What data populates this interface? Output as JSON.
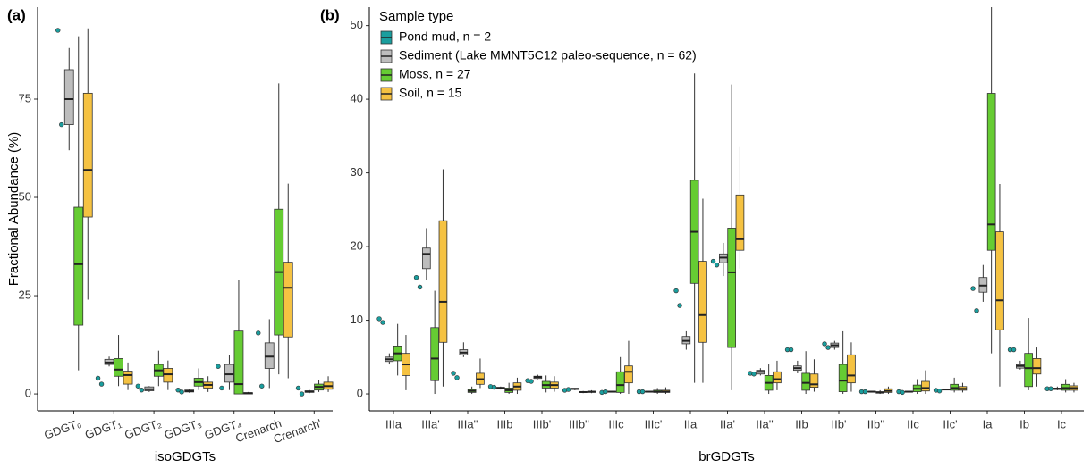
{
  "chart_data": [
    {
      "type": "box",
      "panel_label": "(a)",
      "x_label": "isoGDGTs",
      "y_label": "Fractional Abundance (%)",
      "categories": [
        "GDGT₀",
        "GDGT₁",
        "GDGT₂",
        "GDGT₃",
        "GDGT₄",
        "Crenarch",
        "Crenarch'"
      ],
      "ylim": [
        -4.3,
        98.4
      ],
      "yticks": [
        0,
        25,
        50,
        75
      ],
      "series": [
        {
          "color": "#1a9e9e",
          "values": [
            [
              92.5,
              68.5
            ],
            [
              4,
              2.5
            ],
            [
              2,
              1
            ],
            [
              1,
              0.5
            ],
            [
              7,
              1.5
            ],
            [
              15.5,
              2
            ],
            [
              1.5,
              0
            ]
          ]
        },
        {
          "color": "#bdbdbd",
          "values": [
            {
              "min": 62,
              "q1": 68.5,
              "median": 75,
              "q3": 82.5,
              "max": 88
            },
            {
              "min": 7,
              "q1": 7.5,
              "median": 8,
              "q3": 8.8,
              "max": 9.5
            },
            {
              "min": 0.5,
              "q1": 0.8,
              "median": 1.2,
              "q3": 1.8,
              "max": 2
            },
            {
              "min": 0.3,
              "q1": 0.5,
              "median": 0.7,
              "q3": 1,
              "max": 1.2
            },
            {
              "min": 1,
              "q1": 3,
              "median": 5,
              "q3": 7.5,
              "max": 10
            },
            {
              "min": 1.5,
              "q1": 6.5,
              "median": 9.5,
              "q3": 13,
              "max": 19
            },
            {
              "min": 0.2,
              "q1": 0.4,
              "median": 0.6,
              "q3": 0.8,
              "max": 1
            }
          ]
        },
        {
          "color": "#66cc33",
          "values": [
            {
              "min": 6,
              "q1": 17.5,
              "median": 33,
              "q3": 47.5,
              "max": 91
            },
            {
              "min": 2,
              "q1": 4.5,
              "median": 6.2,
              "q3": 9,
              "max": 15
            },
            {
              "min": 2,
              "q1": 4.5,
              "median": 6,
              "q3": 7.5,
              "max": 11
            },
            {
              "min": 1,
              "q1": 2,
              "median": 3,
              "q3": 4,
              "max": 6.5
            },
            {
              "min": 0,
              "q1": 0,
              "median": 2.5,
              "q3": 16,
              "max": 29
            },
            {
              "min": 5,
              "q1": 15,
              "median": 31,
              "q3": 47,
              "max": 79
            },
            {
              "min": 0.5,
              "q1": 1,
              "median": 1.8,
              "q3": 2.5,
              "max": 3.5
            }
          ]
        },
        {
          "color": "#f5c242",
          "values": [
            {
              "min": 24,
              "q1": 45,
              "median": 57,
              "q3": 76.5,
              "max": 93
            },
            {
              "min": 1,
              "q1": 2.5,
              "median": 4.8,
              "q3": 5.8,
              "max": 8
            },
            {
              "min": 1,
              "q1": 3,
              "median": 5,
              "q3": 6.5,
              "max": 8.5
            },
            {
              "min": 0.5,
              "q1": 1.5,
              "median": 2.3,
              "q3": 3,
              "max": 4.5
            },
            {
              "min": 0,
              "q1": 0,
              "median": 0.2,
              "q3": 0.3,
              "max": 0.5
            },
            {
              "min": 4,
              "q1": 14.5,
              "median": 27,
              "q3": 33.5,
              "max": 53.5
            },
            {
              "min": 0.5,
              "q1": 1.2,
              "median": 2,
              "q3": 3,
              "max": 4.5
            }
          ]
        }
      ]
    },
    {
      "type": "box",
      "panel_label": "(b)",
      "x_label": "brGDGTs",
      "legend_title": "Sample type",
      "categories": [
        "IIIa",
        "IIIa'",
        "IIIa''",
        "IIIb",
        "IIIb'",
        "IIIb''",
        "IIIc",
        "IIIc'",
        "IIa",
        "IIa'",
        "IIa''",
        "IIb",
        "IIb'",
        "IIb''",
        "IIc",
        "IIc'",
        "Ia",
        "Ib",
        "Ic"
      ],
      "ylim": [
        -2.3,
        52.5
      ],
      "yticks": [
        0,
        10,
        20,
        30,
        40,
        50
      ],
      "series": [
        {
          "name": "Pond mud, n = 2",
          "color": "#1a9e9e",
          "values": [
            [
              10.2,
              9.7
            ],
            [
              15.8,
              14.5
            ],
            [
              2.8,
              2.2
            ],
            [
              1,
              0.9
            ],
            [
              1.8,
              1.7
            ],
            [
              0.5,
              0.6
            ],
            [
              0.2,
              0.3
            ],
            [
              0.3,
              0.3
            ],
            [
              14,
              12
            ],
            [
              18,
              17.5
            ],
            [
              2.8,
              2.7
            ],
            [
              6,
              6
            ],
            [
              6.8,
              6.3
            ],
            [
              0.3,
              0.3
            ],
            [
              0.3,
              0.2
            ],
            [
              0.5,
              0.4
            ],
            [
              14.3,
              11.3
            ],
            [
              6,
              6
            ],
            [
              0.7,
              0.7
            ]
          ]
        },
        {
          "name": "Sediment (Lake MMNT5C12 paleo-sequence, n = 62)",
          "color": "#bdbdbd",
          "values": [
            {
              "min": 4,
              "q1": 4.4,
              "median": 4.7,
              "q3": 5,
              "max": 5.5
            },
            {
              "min": 15.5,
              "q1": 17,
              "median": 19,
              "q3": 19.8,
              "max": 22.5
            },
            {
              "min": 5,
              "q1": 5.3,
              "median": 5.6,
              "q3": 6,
              "max": 7
            },
            {
              "min": 0.6,
              "q1": 0.7,
              "median": 0.8,
              "q3": 0.9,
              "max": 1
            },
            {
              "min": 2,
              "q1": 2.1,
              "median": 2.3,
              "q3": 2.4,
              "max": 2.6
            },
            {
              "min": 0.5,
              "q1": 0.6,
              "median": 0.7,
              "q3": 0.75,
              "max": 0.8
            },
            {
              "min": 0.2,
              "q1": 0.25,
              "median": 0.3,
              "q3": 0.35,
              "max": 0.4
            },
            {
              "min": 0.2,
              "q1": 0.25,
              "median": 0.3,
              "q3": 0.35,
              "max": 0.4
            },
            {
              "min": 6,
              "q1": 6.8,
              "median": 7.2,
              "q3": 7.8,
              "max": 8.5
            },
            {
              "min": 16,
              "q1": 17.8,
              "median": 18.5,
              "q3": 19,
              "max": 20.5
            },
            {
              "min": 2.5,
              "q1": 2.7,
              "median": 3,
              "q3": 3.2,
              "max": 3.5
            },
            {
              "min": 2.8,
              "q1": 3.2,
              "median": 3.5,
              "q3": 3.8,
              "max": 4.5
            },
            {
              "min": 6,
              "q1": 6.3,
              "median": 6.6,
              "q3": 6.9,
              "max": 7.2
            },
            {
              "min": 0.2,
              "q1": 0.25,
              "median": 0.3,
              "q3": 0.35,
              "max": 0.4
            },
            {
              "min": 0.2,
              "q1": 0.25,
              "median": 0.3,
              "q3": 0.35,
              "max": 0.4
            },
            {
              "min": 0.5,
              "q1": 0.55,
              "median": 0.6,
              "q3": 0.65,
              "max": 0.7
            },
            {
              "min": 12.5,
              "q1": 13.8,
              "median": 14.7,
              "q3": 15.8,
              "max": 17.5
            },
            {
              "min": 3.3,
              "q1": 3.5,
              "median": 3.8,
              "q3": 4,
              "max": 4.5
            },
            {
              "min": 0.5,
              "q1": 0.6,
              "median": 0.7,
              "q3": 0.8,
              "max": 1
            }
          ]
        },
        {
          "name": "Moss, n = 27",
          "color": "#66cc33",
          "values": [
            {
              "min": 2.5,
              "q1": 4.5,
              "median": 5.5,
              "q3": 6.5,
              "max": 9.5
            },
            {
              "min": 0,
              "q1": 1.8,
              "median": 4.8,
              "q3": 9,
              "max": 14
            },
            {
              "min": 0,
              "q1": 0.2,
              "median": 0.4,
              "q3": 0.6,
              "max": 1
            },
            {
              "min": 0,
              "q1": 0.2,
              "median": 0.5,
              "q3": 0.8,
              "max": 1.5
            },
            {
              "min": 0.2,
              "q1": 0.8,
              "median": 1.2,
              "q3": 1.7,
              "max": 2.5
            },
            {
              "min": 0.1,
              "q1": 0.2,
              "median": 0.25,
              "q3": 0.3,
              "max": 0.4
            },
            {
              "min": 0,
              "q1": 0.2,
              "median": 1.2,
              "q3": 3,
              "max": 5
            },
            {
              "min": 0,
              "q1": 0.2,
              "median": 0.3,
              "q3": 0.5,
              "max": 0.8
            },
            {
              "min": 1.5,
              "q1": 15,
              "median": 22,
              "q3": 29,
              "max": 43.5
            },
            {
              "min": 0.5,
              "q1": 6.3,
              "median": 16.5,
              "q3": 22.5,
              "max": 42
            },
            {
              "min": 0,
              "q1": 0.5,
              "median": 1.5,
              "q3": 2.5,
              "max": 4
            },
            {
              "min": 0,
              "q1": 0.5,
              "median": 1.5,
              "q3": 2.8,
              "max": 5.8
            },
            {
              "min": 0,
              "q1": 0.3,
              "median": 1.8,
              "q3": 4,
              "max": 8.5
            },
            {
              "min": 0,
              "q1": 0.1,
              "median": 0.2,
              "q3": 0.3,
              "max": 0.5
            },
            {
              "min": 0,
              "q1": 0.3,
              "median": 0.7,
              "q3": 1.2,
              "max": 2
            },
            {
              "min": 0.2,
              "q1": 0.5,
              "median": 0.8,
              "q3": 1.3,
              "max": 2.2
            },
            {
              "min": 5.5,
              "q1": 19.5,
              "median": 23,
              "q3": 40.8,
              "max": 52.5
            },
            {
              "min": 0.5,
              "q1": 1,
              "median": 3.5,
              "q3": 5.5,
              "max": 10.3
            },
            {
              "min": 0.2,
              "q1": 0.5,
              "median": 0.8,
              "q3": 1.3,
              "max": 2
            }
          ]
        },
        {
          "name": "Soil, n = 15",
          "color": "#f5c242",
          "values": [
            {
              "min": 0.5,
              "q1": 2.5,
              "median": 4,
              "q3": 5.5,
              "max": 8
            },
            {
              "min": 1,
              "q1": 7,
              "median": 12.5,
              "q3": 23.5,
              "max": 30.5
            },
            {
              "min": 0.8,
              "q1": 1.3,
              "median": 2,
              "q3": 2.8,
              "max": 4.8
            },
            {
              "min": 0,
              "q1": 0.5,
              "median": 1,
              "q3": 1.5,
              "max": 2.2
            },
            {
              "min": 0.3,
              "q1": 0.8,
              "median": 1.2,
              "q3": 1.6,
              "max": 2.4
            },
            {
              "min": 0.1,
              "q1": 0.2,
              "median": 0.3,
              "q3": 0.35,
              "max": 0.5
            },
            {
              "min": 0,
              "q1": 1.5,
              "median": 3,
              "q3": 3.8,
              "max": 7.2
            },
            {
              "min": 0,
              "q1": 0.2,
              "median": 0.3,
              "q3": 0.5,
              "max": 0.9
            },
            {
              "min": 1.5,
              "q1": 7,
              "median": 10.7,
              "q3": 18,
              "max": 26.5
            },
            {
              "min": 17,
              "q1": 19.5,
              "median": 21,
              "q3": 27,
              "max": 33.5
            },
            {
              "min": 0.5,
              "q1": 1.5,
              "median": 2,
              "q3": 3,
              "max": 4.5
            },
            {
              "min": 0.3,
              "q1": 0.9,
              "median": 1.3,
              "q3": 2.7,
              "max": 4.7
            },
            {
              "min": 0.3,
              "q1": 1.5,
              "median": 2.5,
              "q3": 5.3,
              "max": 7
            },
            {
              "min": 0,
              "q1": 0.2,
              "median": 0.4,
              "q3": 0.7,
              "max": 1
            },
            {
              "min": 0,
              "q1": 0.4,
              "median": 0.8,
              "q3": 1.7,
              "max": 3.2
            },
            {
              "min": 0.2,
              "q1": 0.5,
              "median": 0.7,
              "q3": 1,
              "max": 1.5
            },
            {
              "min": 1,
              "q1": 8.7,
              "median": 12.7,
              "q3": 22,
              "max": 28.5
            },
            {
              "min": 1,
              "q1": 2.7,
              "median": 3.5,
              "q3": 4.8,
              "max": 6.3
            },
            {
              "min": 0.2,
              "q1": 0.5,
              "median": 0.8,
              "q3": 1.1,
              "max": 1.5
            }
          ]
        }
      ]
    }
  ]
}
